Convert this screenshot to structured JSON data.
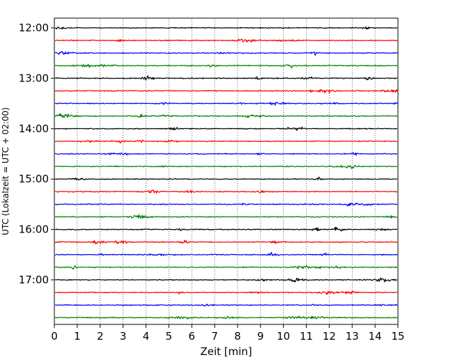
{
  "chart_data": {
    "type": "line",
    "subtype": "helicorder",
    "title": "",
    "xlabel": "Zeit  [min]",
    "ylabel": "UTC (Lokalzeit = UTC + 02:00)",
    "xlim": [
      0,
      15
    ],
    "x_ticks": [
      "0",
      "1",
      "2",
      "3",
      "4",
      "5",
      "6",
      "7",
      "8",
      "9",
      "10",
      "11",
      "12",
      "13",
      "14",
      "15"
    ],
    "y_ticks": [
      "12:00",
      "13:00",
      "14:00",
      "15:00",
      "16:00",
      "17:00"
    ],
    "y_tick_rows": [
      0,
      4,
      8,
      12,
      16,
      20
    ],
    "row_count": 24,
    "row_interval_minutes": 15,
    "start_time": "12:00",
    "grid": {
      "x": "dotted",
      "y": "none"
    },
    "trace_colors": [
      "#000000",
      "#ff0000",
      "#0000ff",
      "#007f00"
    ],
    "series_note": "24 seismogram traces of 15 minutes each, colors cycle black/red/blue/green"
  }
}
